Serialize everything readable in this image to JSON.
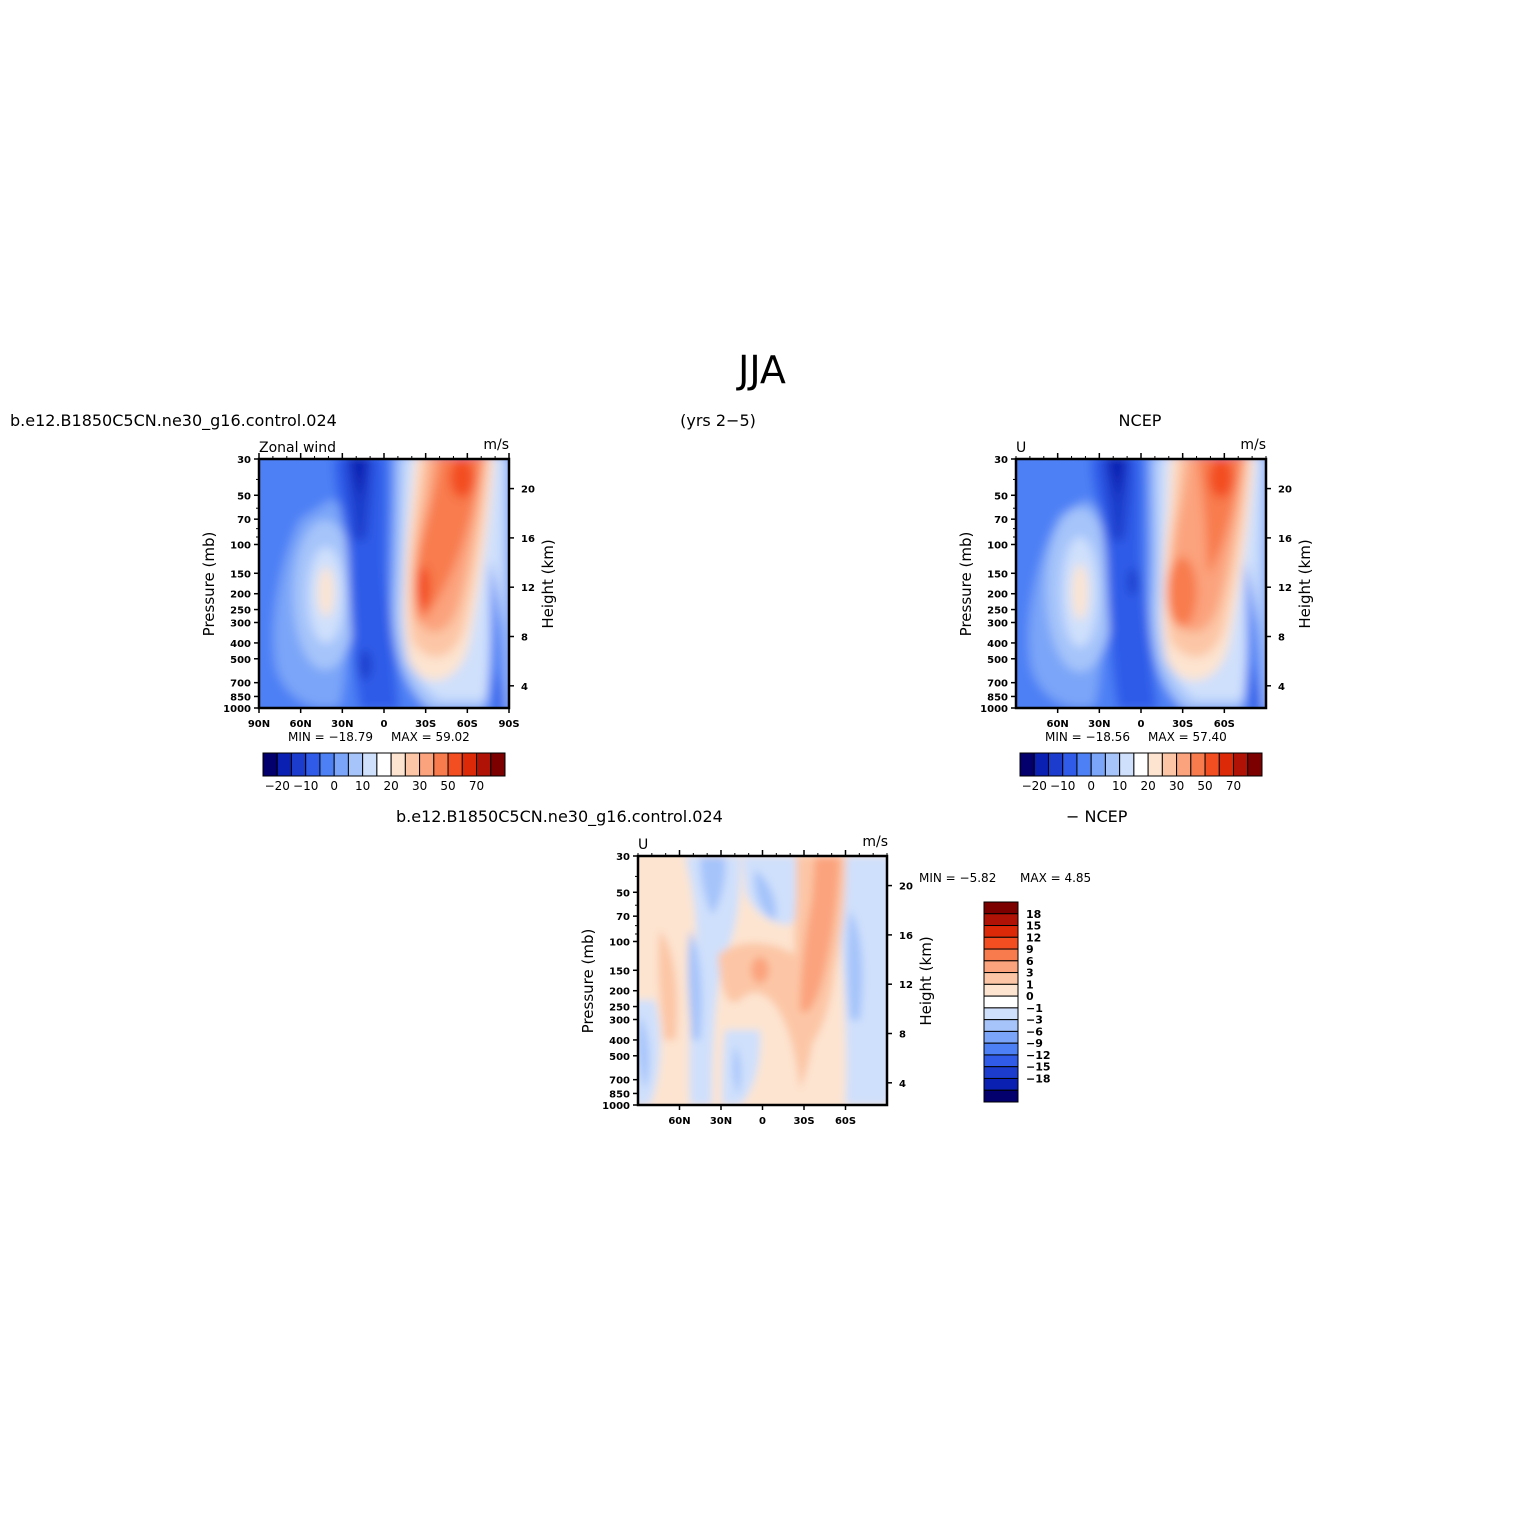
{
  "figure": {
    "title": "JJA",
    "case_name": "b.e12.B1850C5CN.ne30_g16.control.024",
    "years": "(yrs 2−5)",
    "obs_name": "NCEP",
    "diff_suffix": "− NCEP"
  },
  "colors": {
    "blue_red_scale": [
      "#03006d",
      "#0a20b2",
      "#1b3ccc",
      "#2f5be8",
      "#4d80f5",
      "#7aa5f8",
      "#a6c4fa",
      "#cfe0fc",
      "#ffffff",
      "#fde4d0",
      "#fcc6a6",
      "#fba37d",
      "#f87b4e",
      "#f34d22",
      "#dc2a08",
      "#b01305",
      "#7d0000"
    ]
  },
  "chart_data": [
    {
      "type": "heatmap",
      "panel": "model",
      "title_left": "Zonal wind",
      "units": "m/s",
      "ylabel": "Pressure (mb)",
      "ylabel_right": "Height (km)",
      "x_ticks": [
        "90N",
        "60N",
        "30N",
        "0",
        "30S",
        "60S",
        "90S"
      ],
      "y_ticks": [
        "30",
        "50",
        "70",
        "100",
        "150",
        "200",
        "250",
        "300",
        "400",
        "500",
        "700",
        "850",
        "1000"
      ],
      "y_right_ticks": [
        "20",
        "16",
        "12",
        "8",
        "4"
      ],
      "min_label": "MIN = −18.79",
      "max_label": "MAX =    59.02",
      "min": -18.79,
      "max": 59.02,
      "colorbar_ticks": [
        "−20",
        "−10",
        "0",
        "10",
        "20",
        "30",
        "50",
        "70"
      ]
    },
    {
      "type": "heatmap",
      "panel": "obs",
      "title_left": "U",
      "units": "m/s",
      "ylabel": "Pressure (mb)",
      "ylabel_right": "Height (km)",
      "x_ticks": [
        "60N",
        "30N",
        "0",
        "30S",
        "60S"
      ],
      "y_ticks": [
        "30",
        "50",
        "70",
        "100",
        "150",
        "200",
        "250",
        "300",
        "400",
        "500",
        "700",
        "850",
        "1000"
      ],
      "y_right_ticks": [
        "20",
        "16",
        "12",
        "8",
        "4"
      ],
      "min_label": "MIN = −18.56",
      "max_label": "MAX =    57.40",
      "min": -18.56,
      "max": 57.4,
      "colorbar_ticks": [
        "−20",
        "−10",
        "0",
        "10",
        "20",
        "30",
        "50",
        "70"
      ]
    },
    {
      "type": "heatmap",
      "panel": "difference",
      "title_left": "U",
      "units": "m/s",
      "ylabel": "Pressure (mb)",
      "ylabel_right": "Height (km)",
      "x_ticks": [
        "60N",
        "30N",
        "0",
        "30S",
        "60S"
      ],
      "y_ticks": [
        "30",
        "50",
        "70",
        "100",
        "150",
        "200",
        "250",
        "300",
        "400",
        "500",
        "700",
        "850",
        "1000"
      ],
      "y_right_ticks": [
        "20",
        "16",
        "12",
        "8",
        "4"
      ],
      "min_label": "MIN =   −5.82",
      "max_label": "MAX =     4.85",
      "min": -5.82,
      "max": 4.85,
      "colorbar_ticks": [
        "18",
        "15",
        "12",
        "9",
        "6",
        "3",
        "1",
        "0",
        "−1",
        "−3",
        "−6",
        "−9",
        "−12",
        "−15",
        "−18"
      ]
    }
  ]
}
